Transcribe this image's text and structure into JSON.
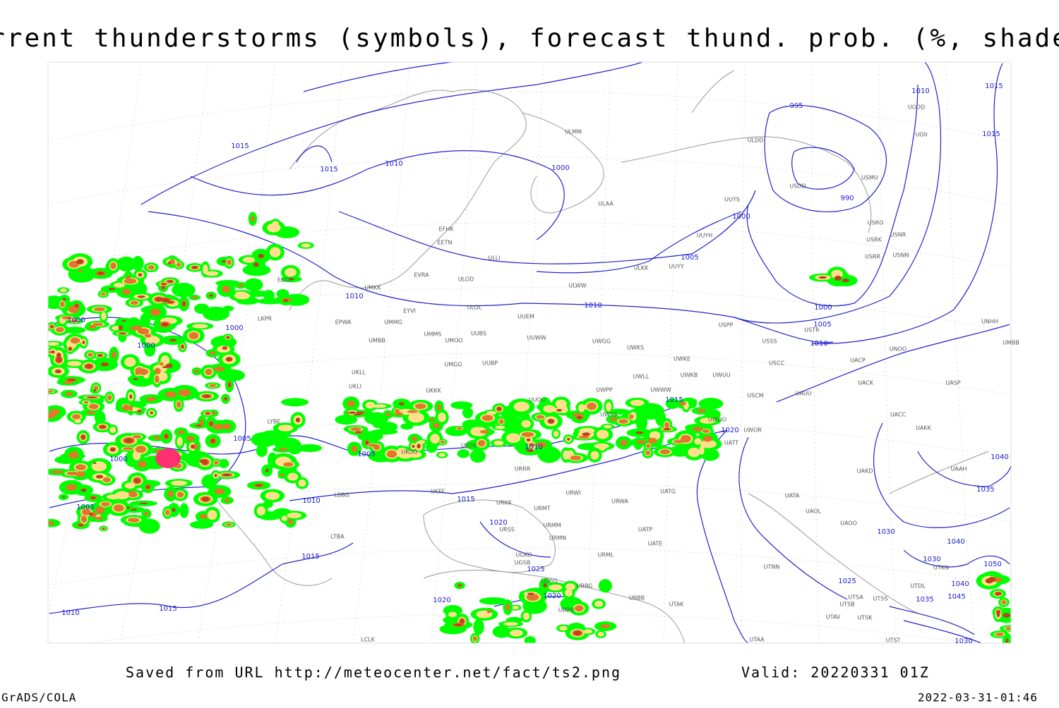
{
  "header": {
    "title": "Current thunderstorms (symbols), forecast thund. prob. (%, shaded)"
  },
  "map": {
    "isobar_labels": [
      1015,
      1015,
      1010,
      1000,
      995,
      990,
      1010,
      1015,
      1015,
      1000,
      1005,
      1010,
      1010,
      1000,
      1005,
      1010,
      1000,
      1000,
      1000,
      1005,
      1000,
      1005,
      1010,
      1015,
      1020,
      1010,
      1015,
      1005,
      1020,
      1025,
      1020,
      1020,
      1015,
      1010,
      1015,
      1030,
      1035,
      1040,
      1025,
      1040,
      1030,
      1050,
      1040,
      1045,
      1035,
      1030
    ],
    "stations": [
      "ULMM",
      "ULDD",
      "UODD",
      "UOII",
      "USMU",
      "USDD",
      "ULAA",
      "UUYS",
      "UUYH",
      "USRO",
      "USRK",
      "USNR",
      "USRR",
      "USNN",
      "EFHK",
      "EETN",
      "ULLI",
      "EVRA",
      "ULOD",
      "UUYY",
      "ULKK",
      "UMKK",
      "ULWW",
      "ULOL",
      "UUEM",
      "EYVI",
      "EPWA",
      "UMMG",
      "USPP",
      "USTR",
      "UNHH",
      "UMMS",
      "UMOO",
      "UUBS",
      "UUWW",
      "UWGG",
      "USSS",
      "UNOO",
      "UMBB",
      "UMBB",
      "UWKS",
      "UMGG",
      "UUBP",
      "UWKE",
      "UWKB",
      "UWUU",
      "USCC",
      "UACP",
      "UKLL",
      "UKLI",
      "UACK",
      "UASP",
      "UWLL",
      "UWWW",
      "UWPP",
      "UKKK",
      "USCM",
      "UAUU",
      "UUOO",
      "UACC",
      "UWSS",
      "UAKK",
      "UWOO",
      "UWOR",
      "UATT",
      "URRR",
      "UKOO",
      "UKDE",
      "UAKD",
      "UAAH",
      "UKFF",
      "URWI",
      "UATG",
      "UATA",
      "URKK",
      "URWA",
      "URMT",
      "UAOL",
      "UAOO",
      "URMM",
      "UATP",
      "URSS",
      "URMN",
      "UATE",
      "UGKO",
      "UGSB",
      "URML",
      "UTNN",
      "UDSG",
      "UBBG",
      "UBBB",
      "UTKN",
      "UTDL",
      "UTSA",
      "UTSS",
      "UTSB",
      "UTAK",
      "UTAV",
      "UTSK",
      "UBBN",
      "UTST",
      "UTAA",
      "LTBA",
      "LBBG",
      "LYBE",
      "LKPR",
      "EDDT",
      "LCLK"
    ]
  },
  "footer": {
    "saved": "Saved from URL http://meteocenter.net/fact/ts2.png",
    "valid": "Valid: 20220331 01Z",
    "software": "GrADS/COLA",
    "timestamp": "2022-03-31-01:46"
  }
}
